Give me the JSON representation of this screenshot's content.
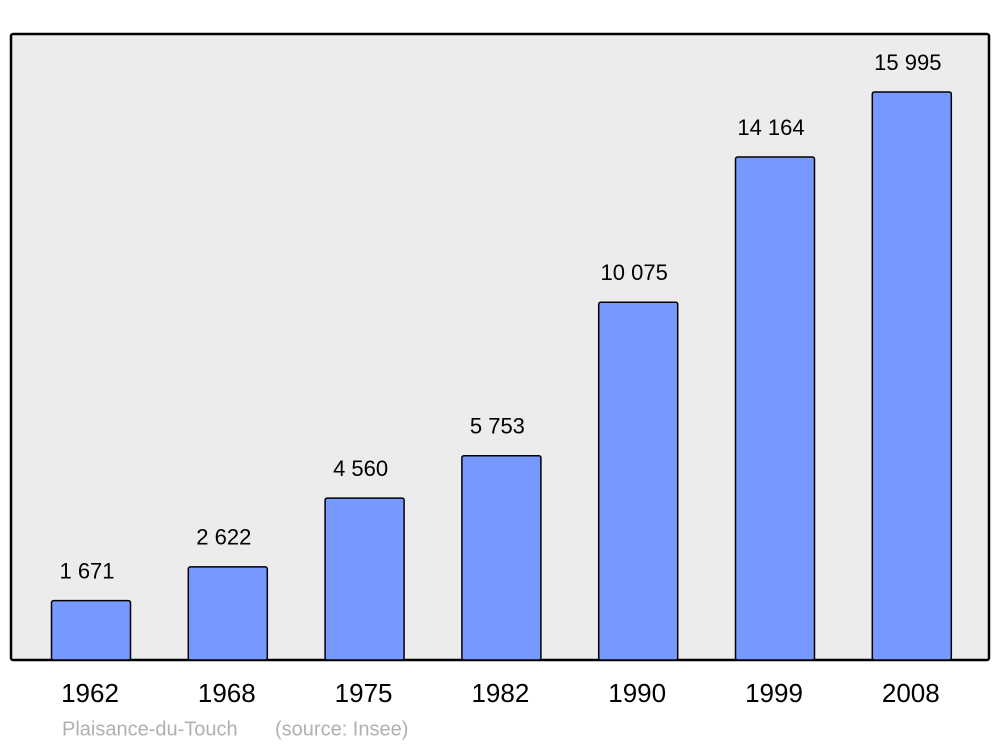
{
  "chart_data": {
    "type": "bar",
    "categories": [
      "1962",
      "1968",
      "1975",
      "1982",
      "1990",
      "1999",
      "2008"
    ],
    "values": [
      1671,
      2622,
      4560,
      5753,
      10075,
      14164,
      15995
    ],
    "value_labels": [
      "1 671",
      "2 622",
      "4 560",
      "5 753",
      "10 075",
      "14 164",
      "15 995"
    ],
    "color": "#7799ff",
    "place": "Plaisance-du-Touch",
    "source": "(source: Insee)"
  }
}
